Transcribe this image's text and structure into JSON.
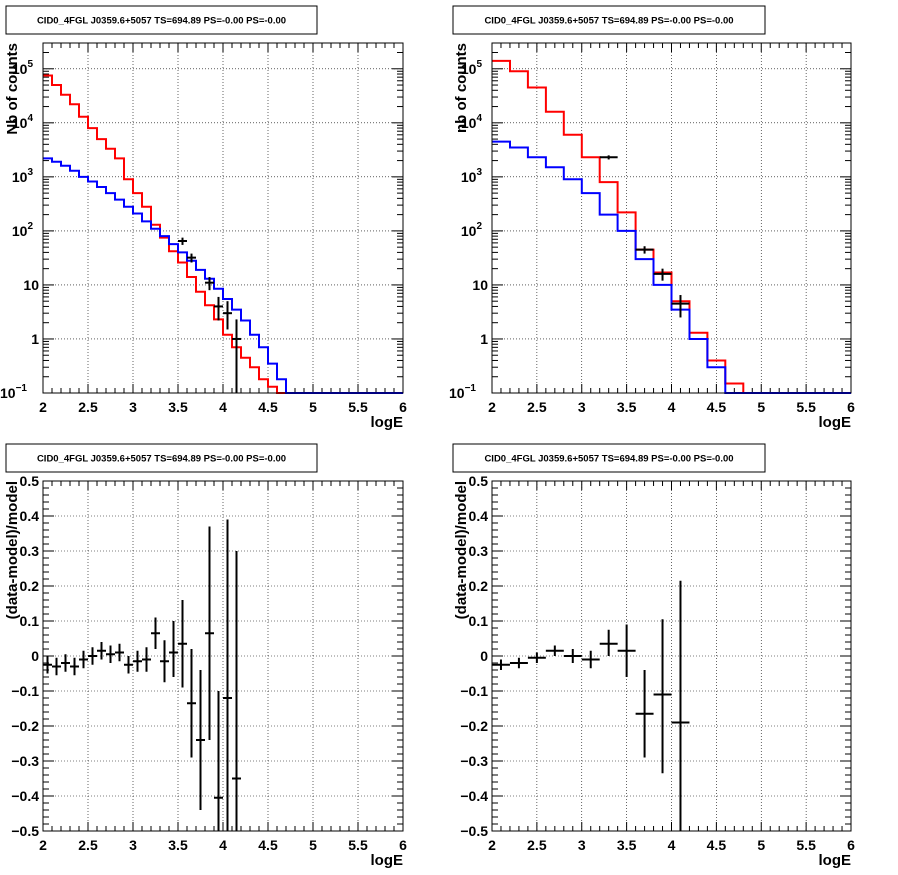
{
  "chart_data": [
    {
      "type": "line",
      "title": "CID0_4FGL J0359.6+5057 TS=694.89 PS=-0.00 PS=-0.00",
      "xlabel": "logE",
      "ylabel": "Nb of counts",
      "xlim": [
        2,
        6
      ],
      "ylim": [
        0.1,
        300000
      ],
      "yscale": "log",
      "grid": true,
      "x_ticks": [
        "2",
        "2.5",
        "3",
        "3.5",
        "4",
        "4.5",
        "5",
        "5.5",
        "6"
      ],
      "y_ticks": [
        "10^-1",
        "1",
        "10",
        "10^2",
        "10^3",
        "10^4",
        "10^5"
      ],
      "bin_edges": [
        2.0,
        2.1,
        2.2,
        2.3,
        2.4,
        2.5,
        2.6,
        2.7,
        2.8,
        2.9,
        3.0,
        3.1,
        3.2,
        3.3,
        3.4,
        3.5,
        3.6,
        3.7,
        3.8,
        3.9,
        4.0,
        4.1,
        4.2,
        4.3,
        4.4,
        4.5,
        4.6,
        4.7,
        4.8,
        4.9,
        5.0,
        5.1,
        5.2,
        5.3,
        5.4,
        5.5,
        5.6,
        5.7,
        5.8,
        5.9,
        6.0
      ],
      "series": [
        {
          "kind": "step",
          "color": "#ff0000",
          "values": [
            75000,
            50000,
            33000,
            22000,
            13000,
            8000,
            5000,
            3300,
            2200,
            900,
            500,
            280,
            130,
            75,
            42,
            26,
            14,
            7.5,
            4.2,
            2.3,
            1.2,
            0.7,
            0.45,
            0.3,
            0.18,
            0.13,
            0.1,
            0.1,
            0.1,
            0.1,
            0.1,
            0.1,
            0.1,
            0.1,
            0.1,
            0.1,
            0.1,
            0.1,
            0.1,
            0.1
          ]
        },
        {
          "kind": "step",
          "color": "#0000ff",
          "values": [
            2200,
            1900,
            1600,
            1300,
            1000,
            820,
            650,
            500,
            380,
            280,
            210,
            150,
            110,
            80,
            57,
            40,
            28,
            19,
            13,
            8.5,
            5.5,
            3.5,
            2.2,
            1.2,
            0.7,
            0.35,
            0.18,
            0.1,
            0.1,
            0.1,
            0.1,
            0.1,
            0.1,
            0.1,
            0.1,
            0.1,
            0.1,
            0.1,
            0.1,
            0.1
          ]
        },
        {
          "kind": "points",
          "color": "#000000",
          "points": [
            {
              "x": 3.55,
              "y": 65,
              "xerr": 0.05,
              "ylo": 55,
              "yhi": 75
            },
            {
              "x": 3.65,
              "y": 32,
              "xerr": 0.05,
              "ylo": 26,
              "yhi": 38
            },
            {
              "x": 3.85,
              "y": 11,
              "xerr": 0.05,
              "ylo": 8,
              "yhi": 14
            },
            {
              "x": 3.95,
              "y": 4,
              "xerr": 0.05,
              "ylo": 2.2,
              "yhi": 6
            },
            {
              "x": 4.05,
              "y": 3,
              "xerr": 0.05,
              "ylo": 1.5,
              "yhi": 5
            },
            {
              "x": 4.15,
              "y": 1,
              "xerr": 0.05,
              "ylo": 0.1,
              "yhi": 2.3
            }
          ]
        }
      ]
    },
    {
      "type": "line",
      "title": "CID0_4FGL J0359.6+5057 TS=694.89 PS=-0.00 PS=-0.00",
      "xlabel": "logE",
      "ylabel": "nb of counts",
      "xlim": [
        2,
        6
      ],
      "ylim": [
        0.1,
        300000
      ],
      "yscale": "log",
      "grid": true,
      "x_ticks": [
        "2",
        "2.5",
        "3",
        "3.5",
        "4",
        "4.5",
        "5",
        "5.5",
        "6"
      ],
      "y_ticks": [
        "10^-1",
        "1",
        "10",
        "10^2",
        "10^3",
        "10^4",
        "10^5"
      ],
      "bin_edges": [
        2.0,
        2.2,
        2.4,
        2.6,
        2.8,
        3.0,
        3.2,
        3.4,
        3.6,
        3.8,
        4.0,
        4.2,
        4.4,
        4.6,
        4.8,
        5.0,
        5.2,
        5.4,
        5.6,
        5.8,
        6.0
      ],
      "series": [
        {
          "kind": "step",
          "color": "#ff0000",
          "values": [
            140000,
            90000,
            45000,
            16000,
            6000,
            2300,
            800,
            220,
            45,
            17,
            5,
            1.3,
            0.4,
            0.15,
            0.1,
            0.1,
            0.1,
            0.1,
            0.1,
            0.1
          ]
        },
        {
          "kind": "step",
          "color": "#0000ff",
          "values": [
            4500,
            3500,
            2300,
            1500,
            900,
            500,
            200,
            100,
            30,
            10,
            3.5,
            1,
            0.3,
            0.1,
            0.1,
            0.1,
            0.1,
            0.1,
            0.1,
            0.1
          ]
        },
        {
          "kind": "points",
          "color": "#000000",
          "points": [
            {
              "x": 3.3,
              "y": 2300,
              "xerr": 0.1,
              "ylo": 2100,
              "yhi": 2500
            },
            {
              "x": 3.7,
              "y": 45,
              "xerr": 0.1,
              "ylo": 38,
              "yhi": 52
            },
            {
              "x": 3.9,
              "y": 16,
              "xerr": 0.1,
              "ylo": 12,
              "yhi": 20
            },
            {
              "x": 4.1,
              "y": 4.5,
              "xerr": 0.1,
              "ylo": 2.5,
              "yhi": 6.5
            }
          ]
        }
      ]
    },
    {
      "type": "scatter",
      "title": "CID0_4FGL J0359.6+5057 TS=694.89 PS=-0.00 PS=-0.00",
      "xlabel": "logE",
      "ylabel": "(data-model)/model",
      "xlim": [
        2,
        6
      ],
      "ylim": [
        -0.5,
        0.5
      ],
      "grid": true,
      "x_ticks": [
        "2",
        "2.5",
        "3",
        "3.5",
        "4",
        "4.5",
        "5",
        "5.5",
        "6"
      ],
      "y_ticks": [
        "-0.5",
        "-0.4",
        "-0.3",
        "-0.2",
        "-0.1",
        "0",
        "0.1",
        "0.2",
        "0.3",
        "0.4",
        "0.5"
      ],
      "series": [
        {
          "kind": "points",
          "color": "#000000",
          "points": [
            {
              "x": 2.05,
              "y": -0.025,
              "xerr": 0.05,
              "ylo": -0.05,
              "yhi": 0.0
            },
            {
              "x": 2.15,
              "y": -0.03,
              "xerr": 0.05,
              "ylo": -0.055,
              "yhi": -0.005
            },
            {
              "x": 2.25,
              "y": -0.02,
              "xerr": 0.05,
              "ylo": -0.045,
              "yhi": 0.005
            },
            {
              "x": 2.35,
              "y": -0.03,
              "xerr": 0.05,
              "ylo": -0.055,
              "yhi": -0.005
            },
            {
              "x": 2.45,
              "y": -0.01,
              "xerr": 0.05,
              "ylo": -0.035,
              "yhi": 0.015
            },
            {
              "x": 2.55,
              "y": 0.0,
              "xerr": 0.05,
              "ylo": -0.025,
              "yhi": 0.025
            },
            {
              "x": 2.65,
              "y": 0.015,
              "xerr": 0.05,
              "ylo": -0.01,
              "yhi": 0.04
            },
            {
              "x": 2.75,
              "y": 0.005,
              "xerr": 0.05,
              "ylo": -0.02,
              "yhi": 0.03
            },
            {
              "x": 2.85,
              "y": 0.01,
              "xerr": 0.05,
              "ylo": -0.015,
              "yhi": 0.035
            },
            {
              "x": 2.95,
              "y": -0.025,
              "xerr": 0.05,
              "ylo": -0.05,
              "yhi": 0.0
            },
            {
              "x": 3.05,
              "y": -0.015,
              "xerr": 0.05,
              "ylo": -0.045,
              "yhi": 0.015
            },
            {
              "x": 3.15,
              "y": -0.01,
              "xerr": 0.05,
              "ylo": -0.045,
              "yhi": 0.025
            },
            {
              "x": 3.25,
              "y": 0.065,
              "xerr": 0.05,
              "ylo": 0.02,
              "yhi": 0.11
            },
            {
              "x": 3.35,
              "y": -0.015,
              "xerr": 0.05,
              "ylo": -0.075,
              "yhi": 0.045
            },
            {
              "x": 3.45,
              "y": 0.01,
              "xerr": 0.05,
              "ylo": -0.06,
              "yhi": 0.1
            },
            {
              "x": 3.55,
              "y": 0.035,
              "xerr": 0.05,
              "ylo": -0.09,
              "yhi": 0.16
            },
            {
              "x": 3.65,
              "y": -0.135,
              "xerr": 0.05,
              "ylo": -0.29,
              "yhi": 0.02
            },
            {
              "x": 3.75,
              "y": -0.24,
              "xerr": 0.05,
              "ylo": -0.44,
              "yhi": -0.04
            },
            {
              "x": 3.85,
              "y": 0.065,
              "xerr": 0.05,
              "ylo": -0.24,
              "yhi": 0.37
            },
            {
              "x": 3.95,
              "y": -0.405,
              "xerr": 0.05,
              "ylo": -0.5,
              "yhi": -0.1
            },
            {
              "x": 4.05,
              "y": -0.12,
              "xerr": 0.05,
              "ylo": -0.5,
              "yhi": 0.39
            },
            {
              "x": 4.15,
              "y": -0.35,
              "xerr": 0.05,
              "ylo": -0.5,
              "yhi": 0.3
            }
          ]
        }
      ]
    },
    {
      "type": "scatter",
      "title": "CID0_4FGL J0359.6+5057 TS=694.89 PS=-0.00 PS=-0.00",
      "xlabel": "logE",
      "ylabel": "(data-model)/model",
      "xlim": [
        2,
        6
      ],
      "ylim": [
        -0.5,
        0.5
      ],
      "grid": true,
      "x_ticks": [
        "2",
        "2.5",
        "3",
        "3.5",
        "4",
        "4.5",
        "5",
        "5.5",
        "6"
      ],
      "y_ticks": [
        "-0.5",
        "-0.4",
        "-0.3",
        "-0.2",
        "-0.1",
        "0",
        "0.1",
        "0.2",
        "0.3",
        "0.4",
        "0.5"
      ],
      "series": [
        {
          "kind": "points",
          "color": "#000000",
          "points": [
            {
              "x": 2.1,
              "y": -0.025,
              "xerr": 0.1,
              "ylo": -0.04,
              "yhi": -0.01
            },
            {
              "x": 2.3,
              "y": -0.02,
              "xerr": 0.1,
              "ylo": -0.035,
              "yhi": -0.005
            },
            {
              "x": 2.5,
              "y": -0.005,
              "xerr": 0.1,
              "ylo": -0.02,
              "yhi": 0.01
            },
            {
              "x": 2.7,
              "y": 0.015,
              "xerr": 0.1,
              "ylo": 0.0,
              "yhi": 0.03
            },
            {
              "x": 2.9,
              "y": 0.0,
              "xerr": 0.1,
              "ylo": -0.02,
              "yhi": 0.02
            },
            {
              "x": 3.1,
              "y": -0.01,
              "xerr": 0.1,
              "ylo": -0.035,
              "yhi": 0.015
            },
            {
              "x": 3.3,
              "y": 0.035,
              "xerr": 0.1,
              "ylo": 0.0,
              "yhi": 0.075
            },
            {
              "x": 3.5,
              "y": 0.015,
              "xerr": 0.1,
              "ylo": -0.06,
              "yhi": 0.09
            },
            {
              "x": 3.7,
              "y": -0.165,
              "xerr": 0.1,
              "ylo": -0.29,
              "yhi": -0.04
            },
            {
              "x": 3.9,
              "y": -0.11,
              "xerr": 0.1,
              "ylo": -0.335,
              "yhi": 0.105
            },
            {
              "x": 4.1,
              "y": -0.19,
              "xerr": 0.1,
              "ylo": -0.5,
              "yhi": 0.215
            }
          ]
        }
      ]
    }
  ]
}
